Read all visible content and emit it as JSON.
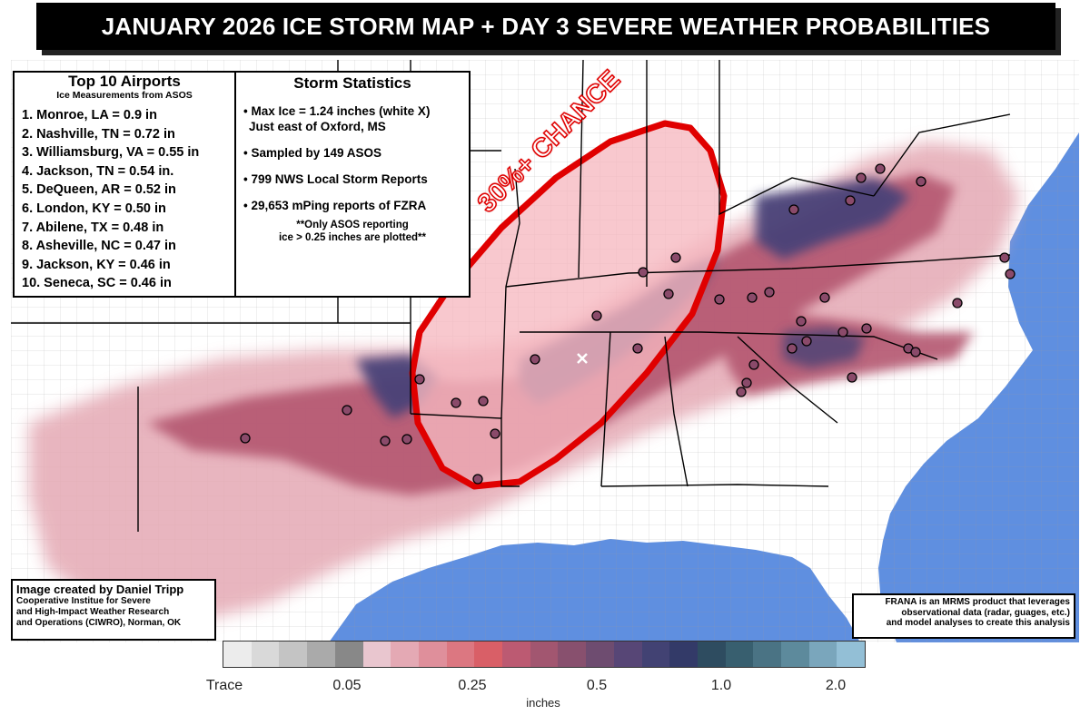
{
  "banner": {
    "title": "JANUARY 2026 ICE STORM MAP + DAY 3 SEVERE WEATHER PROBABILITIES"
  },
  "airports": {
    "title": "Top 10 Airports",
    "subtitle": "Ice Measurements from ASOS",
    "items": [
      "1. Monroe, LA  = 0.9 in",
      "2. Nashville, TN = 0.72 in",
      "3. Williamsburg, VA = 0.55 in",
      "4. Jackson, TN = 0.54 in.",
      "5. DeQueen, AR = 0.52 in",
      "6. London, KY = 0.50 in",
      "7. Abilene, TX = 0.48 in",
      "8. Asheville, NC = 0.47 in",
      "9. Jackson, KY = 0.46 in",
      "10. Seneca, SC = 0.46 in"
    ]
  },
  "stats": {
    "title": "Storm Statistics",
    "items": [
      "• Max Ice = 1.24 inches (white X)",
      "Just east of Oxford, MS",
      "• Sampled by 149 ASOS",
      "• 799 NWS Local Storm Reports",
      "• 29,653 mPing reports of FZRA"
    ],
    "note_line1": "**Only ASOS reporting",
    "note_line2": "ice > 0.25 inches are plotted**"
  },
  "probability": {
    "label": "30%+ CHANCE",
    "outline_color": "#e00000",
    "fill_color": "#f6b8c0"
  },
  "credit": {
    "title": "Image created by Daniel Tripp",
    "lines": [
      "Cooperative Institue for Severe",
      "and High-Impact Weather Research",
      "and Operations (CIWRO), Norman, OK"
    ]
  },
  "frana": {
    "lines": [
      "FRANA is an MRMS product that leverages",
      "observational data (radar, guages, etc.)",
      "and model analyses to create this analysis"
    ]
  },
  "colorbar": {
    "colors": [
      "#ececec",
      "#d9d9d9",
      "#c4c4c4",
      "#aaaaaa",
      "#888888",
      "#e9c6cf",
      "#e4a9b4",
      "#df8f9b",
      "#dc7781",
      "#d95f67",
      "#bc5a72",
      "#a25670",
      "#88506e",
      "#6e4c70",
      "#574676",
      "#424273",
      "#333a68",
      "#2e4c60",
      "#385f6f",
      "#4a7384",
      "#5d8a9c",
      "#7aa6bc",
      "#93bfd6"
    ],
    "tick_labels": [
      "Trace",
      "0.05",
      "0.25",
      "0.5",
      "1.0",
      "2.0"
    ],
    "units": "inches"
  },
  "map": {
    "ocean_color": "#5f8fe0",
    "max_ice_marker": "white X"
  }
}
